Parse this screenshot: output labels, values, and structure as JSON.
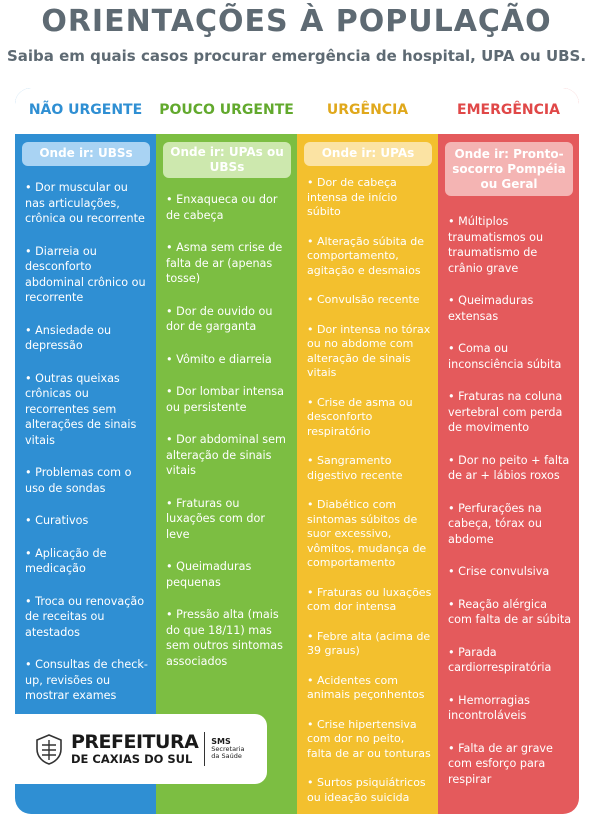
{
  "header": {
    "title": "ORIENTAÇÕES À POPULAÇÃO",
    "subtitle": "Saiba em quais casos procurar emergência de hospital, UPA ou UBS."
  },
  "columns": [
    {
      "heading": "NÃO URGENTE",
      "where": "Onde ir: UBSs",
      "items": [
        "• Dor muscular ou nas articulações, crônica ou recorrente",
        "• Diarreia ou desconforto abdominal crônico ou recorrente",
        "• Ansiedade ou depressão",
        "• Outras queixas crônicas ou recorrentes sem alterações de sinais vitais",
        "• Problemas com o uso de sondas",
        "• Curativos",
        "• Aplicação de medicação",
        "• Troca ou renovação de receitas ou atestados",
        "• Consultas de check-up, revisões ou mostrar exames"
      ]
    },
    {
      "heading": "POUCO URGENTE",
      "where": "Onde ir: UPAs ou UBSs",
      "items": [
        "• Enxaqueca ou dor de cabeça",
        "• Asma sem crise de falta de ar (apenas tosse)",
        "• Dor de ouvido ou dor de garganta",
        "• Vômito e diarreia",
        "• Dor lombar intensa ou persistente",
        "• Dor abdominal sem alteração de sinais vitais",
        "• Fraturas ou luxações com dor leve",
        "• Queimaduras pequenas",
        "• Pressão alta (mais do que 18/11) mas sem outros sintomas associados"
      ]
    },
    {
      "heading": "URGÊNCIA",
      "where": "Onde ir: UPAs",
      "items": [
        "• Dor de cabeça intensa de início súbito",
        "• Alteração súbita de comportamento, agitação e desmaios",
        "• Convulsão recente",
        "• Dor intensa no tórax ou no abdome com alteração de sinais vitais",
        "• Crise de asma ou desconforto respiratório",
        "• Sangramento digestivo recente",
        "• Diabético com sintomas súbitos de suor excessivo, vômitos, mudança de comportamento",
        "• Fraturas ou luxações com dor intensa",
        "• Febre alta (acima de 39 graus)",
        "• Acidentes com animais peçonhentos",
        "• Crise hipertensiva com dor no peito, falta de ar ou tonturas",
        "• Surtos psiquiátricos ou ideação suicida"
      ]
    },
    {
      "heading": "EMERGÊNCIA",
      "where": "Onde ir: Pronto-socorro Pompéia ou Geral",
      "items": [
        "• Múltiplos traumatismos ou traumatismo de crânio grave",
        "• Queimaduras extensas",
        "• Coma ou inconsciência súbita",
        "• Fraturas na coluna vertebral com perda de movimento",
        "• Dor no peito + falta de ar + lábios roxos",
        "• Perfurações na cabeça, tórax ou abdome",
        "• Crise convulsiva",
        "• Reação alérgica com falta de ar súbita",
        "• Parada cardiorrespiratória",
        "• Hemorragias incontroláveis",
        "• Falta de ar grave com esforço para respirar"
      ]
    }
  ],
  "logo": {
    "line1": "PREFEITURA",
    "line2": "DE CAXIAS DO SUL",
    "sms": "SMS",
    "sms_sub1": "Secretaria",
    "sms_sub2": "da Saúde",
    "crest": "city-crest-icon"
  },
  "colors": {
    "nao_urgente": "#2f8fd3",
    "pouco_urgente": "#7cbe42",
    "urgencia": "#f3c02e",
    "emergencia": "#e45a5c"
  }
}
